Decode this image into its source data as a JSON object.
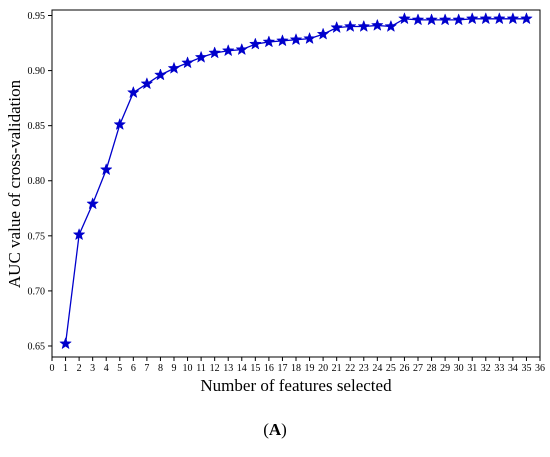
{
  "chart_data": {
    "type": "line",
    "title": "",
    "xlabel": "Number of features selected",
    "ylabel": "AUC value of cross-validation",
    "xlim": [
      0,
      36
    ],
    "ylim": [
      0.64,
      0.955
    ],
    "xticks": [
      0,
      1,
      2,
      3,
      4,
      5,
      6,
      7,
      8,
      9,
      10,
      11,
      12,
      13,
      14,
      15,
      16,
      17,
      18,
      19,
      20,
      21,
      22,
      23,
      24,
      25,
      26,
      27,
      28,
      29,
      30,
      31,
      32,
      33,
      34,
      35,
      36
    ],
    "yticks": [
      "0.65",
      "0.70",
      "0.75",
      "0.80",
      "0.85",
      "0.90",
      "0.95"
    ],
    "grid": false,
    "legend": "none",
    "series": [
      {
        "color": "#0000cc",
        "marker": "star",
        "x": [
          1,
          2,
          3,
          4,
          5,
          6,
          7,
          8,
          9,
          10,
          11,
          12,
          13,
          14,
          15,
          16,
          17,
          18,
          19,
          20,
          21,
          22,
          23,
          24,
          25,
          26,
          27,
          28,
          29,
          30,
          31,
          32,
          33,
          34,
          35
        ],
        "values": [
          0.652,
          0.751,
          0.779,
          0.81,
          0.851,
          0.88,
          0.888,
          0.896,
          0.902,
          0.907,
          0.912,
          0.916,
          0.918,
          0.919,
          0.924,
          0.926,
          0.927,
          0.928,
          0.929,
          0.933,
          0.939,
          0.94,
          0.94,
          0.941,
          0.94,
          0.947,
          0.946,
          0.946,
          0.946,
          0.946,
          0.947,
          0.947,
          0.947,
          0.947,
          0.947
        ]
      }
    ]
  },
  "caption": {
    "open": "(",
    "letter": "A",
    "close": ")"
  }
}
